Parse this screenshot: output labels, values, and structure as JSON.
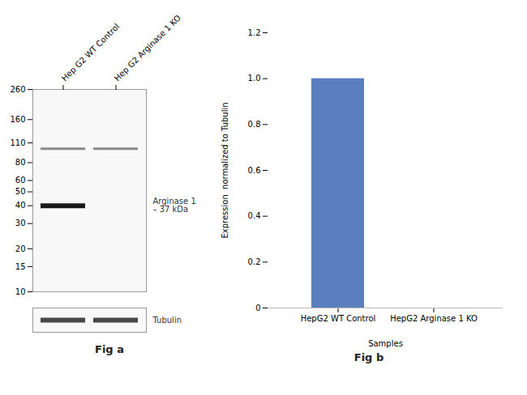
{
  "chart_data": [
    {
      "type": "blot",
      "title": "Fig a",
      "categories": [
        "Hep G2 WT Control",
        "Hep G2 Arginase 1 KO"
      ],
      "log": "y",
      "ylim": [
        10,
        260
      ],
      "yticks": [
        260,
        160,
        110,
        80,
        60,
        50,
        40,
        30,
        20,
        15,
        10
      ],
      "bands": [
        {
          "y": 40,
          "lanes": [
            0
          ]
        },
        {
          "y": 100,
          "lanes": [
            0,
            1
          ]
        }
      ],
      "annotations": [
        {
          "text": "Arginase 1\n– 37 kDa",
          "y": 40
        },
        {
          "text": "Tubulin",
          "lanes": [
            0,
            1
          ]
        }
      ]
    },
    {
      "type": "bar",
      "title": "Fig b",
      "categories": [
        "HepG2 WT Control",
        "HepG2 Arginase 1 KO"
      ],
      "values": [
        1.0,
        0.0
      ],
      "color": "#5b7fbe",
      "ylabel": "Expression  normalized to Tubulin",
      "xlabel": "Samples",
      "ylim": [
        0,
        1.2
      ],
      "yticks": [
        0,
        0.2,
        0.4,
        0.6,
        0.8,
        {
          "value": 1.0,
          "label": "1.0"
        },
        1.2
      ]
    }
  ]
}
